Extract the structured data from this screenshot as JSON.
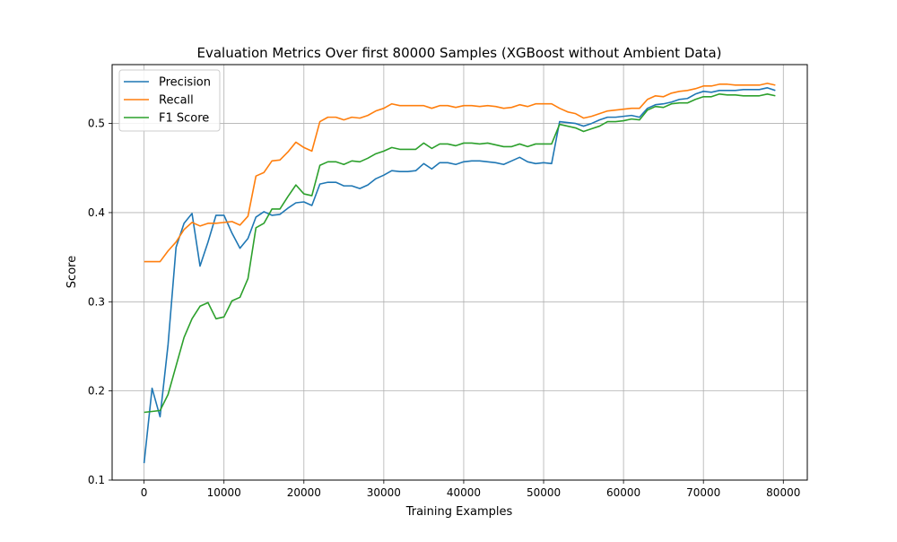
{
  "chart_data": {
    "type": "line",
    "title": "Evaluation Metrics Over first 80000 Samples (XGBoost without Ambient Data)",
    "xlabel": "Training Examples",
    "ylabel": "Score",
    "xlim": [
      -4000,
      83000
    ],
    "ylim": [
      0.1,
      0.566
    ],
    "xticks": [
      0,
      10000,
      20000,
      30000,
      40000,
      50000,
      60000,
      70000,
      80000
    ],
    "yticks": [
      0.1,
      0.2,
      0.3,
      0.4,
      0.5
    ],
    "grid": true,
    "legend_position": "top-left",
    "x": [
      0,
      1000,
      2000,
      3000,
      4000,
      5000,
      6000,
      7000,
      8000,
      9000,
      10000,
      11000,
      12000,
      13000,
      14000,
      15000,
      16000,
      17000,
      18000,
      19000,
      20000,
      21000,
      22000,
      23000,
      24000,
      25000,
      26000,
      27000,
      28000,
      29000,
      30000,
      31000,
      32000,
      33000,
      34000,
      35000,
      36000,
      37000,
      38000,
      39000,
      40000,
      41000,
      42000,
      43000,
      44000,
      45000,
      46000,
      47000,
      48000,
      49000,
      50000,
      51000,
      52000,
      53000,
      54000,
      55000,
      56000,
      57000,
      58000,
      59000,
      60000,
      61000,
      62000,
      63000,
      64000,
      65000,
      66000,
      67000,
      68000,
      69000,
      70000,
      71000,
      72000,
      73000,
      74000,
      75000,
      76000,
      77000,
      78000,
      79000
    ],
    "series": [
      {
        "name": "Precision",
        "color": "#1f77b4",
        "values": [
          0.119,
          0.203,
          0.171,
          0.252,
          0.361,
          0.388,
          0.399,
          0.34,
          0.367,
          0.397,
          0.397,
          0.377,
          0.36,
          0.371,
          0.395,
          0.401,
          0.397,
          0.398,
          0.405,
          0.411,
          0.412,
          0.408,
          0.432,
          0.434,
          0.434,
          0.43,
          0.43,
          0.427,
          0.431,
          0.438,
          0.442,
          0.447,
          0.446,
          0.446,
          0.447,
          0.455,
          0.449,
          0.456,
          0.456,
          0.454,
          0.457,
          0.458,
          0.458,
          0.457,
          0.456,
          0.454,
          0.458,
          0.462,
          0.457,
          0.455,
          0.456,
          0.455,
          0.502,
          0.501,
          0.5,
          0.497,
          0.5,
          0.504,
          0.507,
          0.507,
          0.508,
          0.509,
          0.507,
          0.517,
          0.521,
          0.522,
          0.524,
          0.527,
          0.528,
          0.533,
          0.536,
          0.535,
          0.537,
          0.537,
          0.537,
          0.538,
          0.538,
          0.538,
          0.54,
          0.537
        ]
      },
      {
        "name": "Recall",
        "color": "#ff7f0e",
        "values": [
          0.345,
          0.345,
          0.345,
          0.357,
          0.367,
          0.381,
          0.389,
          0.385,
          0.388,
          0.388,
          0.389,
          0.39,
          0.386,
          0.396,
          0.441,
          0.445,
          0.458,
          0.459,
          0.468,
          0.479,
          0.473,
          0.469,
          0.502,
          0.507,
          0.507,
          0.504,
          0.507,
          0.506,
          0.509,
          0.514,
          0.517,
          0.522,
          0.52,
          0.52,
          0.52,
          0.52,
          0.517,
          0.52,
          0.52,
          0.518,
          0.52,
          0.52,
          0.519,
          0.52,
          0.519,
          0.517,
          0.518,
          0.521,
          0.519,
          0.522,
          0.522,
          0.522,
          0.517,
          0.513,
          0.511,
          0.506,
          0.508,
          0.511,
          0.514,
          0.515,
          0.516,
          0.517,
          0.517,
          0.527,
          0.531,
          0.53,
          0.534,
          0.536,
          0.537,
          0.539,
          0.542,
          0.542,
          0.544,
          0.544,
          0.543,
          0.543,
          0.543,
          0.543,
          0.545,
          0.543
        ]
      },
      {
        "name": "F1 Score",
        "color": "#2ca02c",
        "values": [
          0.176,
          0.177,
          0.178,
          0.196,
          0.228,
          0.26,
          0.281,
          0.295,
          0.299,
          0.281,
          0.283,
          0.301,
          0.305,
          0.326,
          0.383,
          0.388,
          0.404,
          0.404,
          0.418,
          0.431,
          0.421,
          0.419,
          0.453,
          0.457,
          0.457,
          0.454,
          0.458,
          0.457,
          0.461,
          0.466,
          0.469,
          0.473,
          0.471,
          0.471,
          0.471,
          0.478,
          0.472,
          0.477,
          0.477,
          0.475,
          0.478,
          0.478,
          0.477,
          0.478,
          0.476,
          0.474,
          0.474,
          0.477,
          0.474,
          0.477,
          0.477,
          0.477,
          0.499,
          0.497,
          0.495,
          0.491,
          0.494,
          0.497,
          0.502,
          0.502,
          0.503,
          0.505,
          0.504,
          0.515,
          0.519,
          0.518,
          0.522,
          0.523,
          0.523,
          0.527,
          0.53,
          0.53,
          0.533,
          0.532,
          0.532,
          0.531,
          0.531,
          0.531,
          0.533,
          0.531
        ]
      }
    ]
  }
}
